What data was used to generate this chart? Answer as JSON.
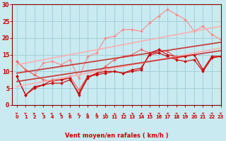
{
  "title": "",
  "xlabel": "Vent moyen/en rafales ( km/h )",
  "ylabel": "",
  "background_color": "#c8eaf0",
  "grid_color": "#a0ccd8",
  "x": [
    0,
    1,
    2,
    3,
    4,
    5,
    6,
    7,
    8,
    9,
    10,
    11,
    12,
    13,
    14,
    15,
    16,
    17,
    18,
    19,
    20,
    21,
    22,
    23
  ],
  "series": [
    {
      "label": "gust_light",
      "color": "#ff8888",
      "alpha": 1.0,
      "lw": 0.8,
      "marker": "D",
      "ms": 2.0,
      "y": [
        13.0,
        10.5,
        9.0,
        12.5,
        13.0,
        12.0,
        13.5,
        8.0,
        14.5,
        15.5,
        20.0,
        20.5,
        22.5,
        22.5,
        22.0,
        24.5,
        26.5,
        28.5,
        27.0,
        25.5,
        22.0,
        23.5,
        21.0,
        19.5
      ]
    },
    {
      "label": "mean_medium",
      "color": "#ee6666",
      "alpha": 1.0,
      "lw": 0.8,
      "marker": "D",
      "ms": 2.0,
      "y": [
        13.0,
        10.5,
        9.0,
        7.5,
        7.0,
        7.5,
        8.5,
        4.5,
        8.5,
        9.5,
        11.5,
        13.5,
        14.5,
        15.0,
        16.5,
        15.5,
        16.5,
        16.0,
        14.0,
        14.5,
        15.0,
        10.5,
        14.5,
        14.5
      ]
    },
    {
      "label": "line_dark1",
      "color": "#cc0000",
      "alpha": 1.0,
      "lw": 0.8,
      "marker": "D",
      "ms": 2.0,
      "y": [
        8.5,
        3.0,
        5.5,
        6.0,
        7.5,
        7.5,
        8.0,
        3.0,
        8.0,
        9.5,
        10.0,
        10.0,
        9.5,
        10.0,
        10.5,
        15.5,
        16.5,
        15.0,
        14.5,
        14.5,
        15.0,
        10.5,
        14.5,
        14.5
      ]
    },
    {
      "label": "line_dark2",
      "color": "#cc0000",
      "alpha": 1.0,
      "lw": 0.8,
      "marker": "D",
      "ms": 2.0,
      "y": [
        8.5,
        3.0,
        5.0,
        6.0,
        6.5,
        6.5,
        7.5,
        3.5,
        8.5,
        9.0,
        9.5,
        10.0,
        9.5,
        10.5,
        11.0,
        15.0,
        15.5,
        14.5,
        13.5,
        13.0,
        13.5,
        10.0,
        14.0,
        14.5
      ]
    },
    {
      "label": "trend_light_upper",
      "color": "#ffaaaa",
      "alpha": 0.9,
      "lw": 1.2,
      "marker": null,
      "ms": 0,
      "y": [
        12.0,
        12.5,
        13.0,
        13.5,
        14.0,
        14.5,
        15.0,
        15.5,
        16.0,
        16.5,
        17.0,
        17.5,
        18.0,
        18.5,
        19.0,
        19.5,
        20.0,
        20.5,
        21.0,
        21.5,
        22.0,
        22.5,
        23.0,
        23.5
      ]
    },
    {
      "label": "trend_light_lower",
      "color": "#ffaaaa",
      "alpha": 0.9,
      "lw": 1.2,
      "marker": null,
      "ms": 0,
      "y": [
        5.5,
        6.0,
        6.5,
        7.0,
        7.5,
        8.0,
        8.5,
        9.0,
        9.5,
        10.0,
        10.5,
        11.0,
        11.5,
        12.0,
        12.5,
        13.0,
        13.5,
        14.0,
        14.5,
        15.0,
        15.5,
        16.0,
        16.5,
        17.0
      ]
    },
    {
      "label": "trend_dark_upper",
      "color": "#cc2222",
      "alpha": 0.9,
      "lw": 1.2,
      "marker": null,
      "ms": 0,
      "y": [
        9.5,
        9.9,
        10.3,
        10.7,
        11.1,
        11.5,
        11.9,
        12.3,
        12.7,
        13.1,
        13.5,
        13.9,
        14.3,
        14.7,
        15.1,
        15.5,
        15.9,
        16.3,
        16.7,
        17.1,
        17.5,
        17.9,
        18.3,
        18.7
      ]
    },
    {
      "label": "trend_dark_lower",
      "color": "#cc2222",
      "alpha": 0.9,
      "lw": 1.2,
      "marker": null,
      "ms": 0,
      "y": [
        7.0,
        7.4,
        7.8,
        8.2,
        8.6,
        9.0,
        9.4,
        9.8,
        10.2,
        10.6,
        11.0,
        11.4,
        11.8,
        12.2,
        12.6,
        13.0,
        13.4,
        13.8,
        14.2,
        14.6,
        15.0,
        15.4,
        15.8,
        16.2
      ]
    }
  ],
  "ylim": [
    0,
    30
  ],
  "xlim": [
    -0.5,
    23
  ],
  "yticks": [
    0,
    5,
    10,
    15,
    20,
    25,
    30
  ],
  "xticks": [
    0,
    1,
    2,
    3,
    4,
    5,
    6,
    7,
    8,
    9,
    10,
    11,
    12,
    13,
    14,
    15,
    16,
    17,
    18,
    19,
    20,
    21,
    22,
    23
  ],
  "arrow_angles": [
    30,
    40,
    50,
    55,
    60,
    65,
    70,
    75,
    80,
    90,
    100,
    110,
    115,
    120,
    125,
    130,
    135,
    140,
    145,
    150,
    155,
    160,
    165,
    170
  ],
  "xlabel_color": "#cc0000",
  "tick_color": "#cc0000",
  "axis_color": "#880000"
}
